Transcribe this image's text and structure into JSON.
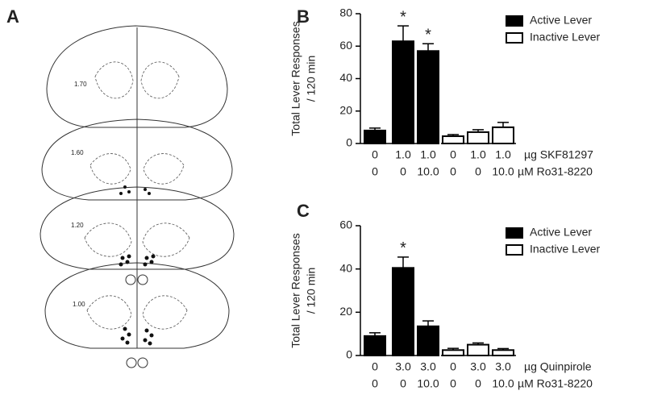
{
  "figure": {
    "panel_labels": [
      "A",
      "B",
      "C"
    ],
    "section_labels": [
      "1.70",
      "1.60",
      "1.20",
      "1.00"
    ]
  },
  "chart_data": [
    {
      "type": "bar",
      "ylabel": [
        "Total Lever Responses",
        "/ 120 min"
      ],
      "categories": [
        "0",
        "1.0",
        "1.0",
        "0",
        "1.0",
        "1.0"
      ],
      "categories_row2": [
        "0",
        "0",
        "10.0",
        "0",
        "0",
        "10.0"
      ],
      "row_labels": [
        "µg SKF81297",
        "µM Ro31-8220"
      ],
      "series": [
        {
          "name": "Active Lever",
          "color": "#000000",
          "values": [
            8,
            63,
            57,
            null,
            null,
            null
          ],
          "errors": [
            1.5,
            9.5,
            4.5,
            null,
            null,
            null
          ]
        },
        {
          "name": "Inactive Lever",
          "color": "#ffffff",
          "values": [
            null,
            null,
            null,
            4.5,
            7,
            10
          ],
          "errors": [
            null,
            null,
            null,
            1,
            1.5,
            3
          ]
        }
      ],
      "annotations": [
        {
          "text": "*",
          "index": 1
        },
        {
          "text": "*",
          "index": 2
        }
      ],
      "ylim": [
        0,
        80
      ],
      "yticks": [
        0,
        20,
        40,
        60,
        80
      ],
      "legend": "top-right"
    },
    {
      "type": "bar",
      "ylabel": [
        "Total Lever Responses",
        "/ 120 min"
      ],
      "categories": [
        "0",
        "3.0",
        "3.0",
        "0",
        "3.0",
        "3.0"
      ],
      "categories_row2": [
        "0",
        "0",
        "10.0",
        "0",
        "0",
        "10.0"
      ],
      "row_labels": [
        "µg Quinpirole",
        "µM Ro31-8220"
      ],
      "series": [
        {
          "name": "Active Lever",
          "color": "#000000",
          "values": [
            9,
            40.5,
            13.5,
            null,
            null,
            null
          ],
          "errors": [
            1.5,
            5,
            2.5,
            null,
            null,
            null
          ]
        },
        {
          "name": "Inactive Lever",
          "color": "#ffffff",
          "values": [
            null,
            null,
            null,
            2.5,
            5,
            2.5
          ],
          "errors": [
            null,
            null,
            null,
            0.8,
            0.8,
            0.7
          ]
        }
      ],
      "annotations": [
        {
          "text": "*",
          "index": 1
        }
      ],
      "ylim": [
        0,
        60
      ],
      "yticks": [
        0,
        20,
        40,
        60
      ],
      "legend": "top-right"
    }
  ]
}
